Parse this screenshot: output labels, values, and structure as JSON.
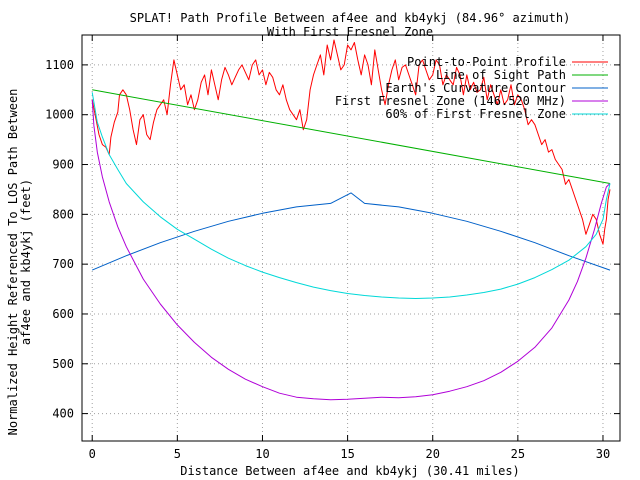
{
  "chart_data": {
    "type": "line",
    "title": "SPLAT! Path Profile Between af4ee and kb4ykj (84.96° azimuth)",
    "subtitle": "With First Fresnel Zone",
    "xlabel": "Distance Between af4ee and kb4ykj (30.41 miles)",
    "ylabel_lines": [
      "Normalized Height Referenced To LOS Path Between",
      "af4ee and kb4ykj (feet)"
    ],
    "xlim": [
      -0.6,
      31.0
    ],
    "ylim": [
      345,
      1160
    ],
    "xticks": [
      0,
      5,
      10,
      15,
      20,
      25,
      30
    ],
    "yticks": [
      400,
      500,
      600,
      700,
      800,
      900,
      1000,
      1100
    ],
    "grid": true,
    "legend_position": "top-right",
    "series": [
      {
        "name": "Point-to-Point Profile",
        "color": "#ff0000",
        "x": [
          0,
          0.2,
          0.4,
          0.6,
          0.8,
          1.0,
          1.1,
          1.3,
          1.5,
          1.6,
          1.8,
          2.0,
          2.2,
          2.4,
          2.6,
          2.8,
          3.0,
          3.2,
          3.4,
          3.6,
          3.8,
          4.0,
          4.2,
          4.4,
          4.6,
          4.8,
          5.0,
          5.2,
          5.4,
          5.6,
          5.8,
          6.0,
          6.2,
          6.4,
          6.6,
          6.8,
          7.0,
          7.2,
          7.4,
          7.6,
          7.8,
          8.0,
          8.2,
          8.4,
          8.6,
          8.8,
          9.0,
          9.2,
          9.4,
          9.6,
          9.8,
          10.0,
          10.2,
          10.4,
          10.6,
          10.8,
          11.0,
          11.2,
          11.4,
          11.6,
          11.8,
          12.0,
          12.2,
          12.4,
          12.6,
          12.8,
          13.0,
          13.2,
          13.4,
          13.6,
          13.8,
          14.0,
          14.2,
          14.4,
          14.6,
          14.8,
          15.0,
          15.2,
          15.4,
          15.6,
          15.8,
          16.0,
          16.2,
          16.4,
          16.6,
          16.8,
          17.0,
          17.2,
          17.4,
          17.6,
          17.8,
          18.0,
          18.2,
          18.4,
          18.6,
          18.8,
          19.0,
          19.2,
          19.4,
          19.6,
          19.8,
          20.0,
          20.2,
          20.4,
          20.6,
          20.8,
          21.0,
          21.2,
          21.4,
          21.6,
          21.8,
          22.0,
          22.2,
          22.4,
          22.6,
          22.8,
          23.0,
          23.2,
          23.4,
          23.6,
          23.8,
          24.0,
          24.2,
          24.4,
          24.6,
          24.8,
          25.0,
          25.2,
          25.4,
          25.6,
          25.8,
          26.0,
          26.2,
          26.4,
          26.6,
          26.8,
          27.0,
          27.2,
          27.4,
          27.6,
          27.8,
          28.0,
          28.2,
          28.4,
          28.6,
          28.8,
          29.0,
          29.2,
          29.4,
          29.6,
          29.8,
          30.0,
          30.1,
          30.2,
          30.3,
          30.41
        ],
        "y": [
          1030,
          995,
          960,
          940,
          935,
          920,
          955,
          985,
          1005,
          1040,
          1050,
          1040,
          1010,
          970,
          940,
          990,
          1000,
          960,
          950,
          985,
          1010,
          1020,
          1030,
          1000,
          1060,
          1110,
          1080,
          1050,
          1060,
          1020,
          1040,
          1010,
          1030,
          1065,
          1080,
          1040,
          1090,
          1060,
          1030,
          1070,
          1095,
          1080,
          1060,
          1075,
          1090,
          1100,
          1085,
          1070,
          1100,
          1110,
          1080,
          1090,
          1060,
          1085,
          1075,
          1050,
          1040,
          1060,
          1030,
          1010,
          1000,
          990,
          1010,
          970,
          990,
          1050,
          1080,
          1100,
          1120,
          1080,
          1140,
          1110,
          1150,
          1120,
          1090,
          1100,
          1140,
          1130,
          1145,
          1110,
          1080,
          1120,
          1100,
          1060,
          1130,
          1090,
          1050,
          1020,
          1060,
          1090,
          1110,
          1070,
          1095,
          1100,
          1080,
          1060,
          1040,
          1100,
          1110,
          1090,
          1070,
          1080,
          1110,
          1100,
          1060,
          1080,
          1070,
          1060,
          1095,
          1080,
          1040,
          1080,
          1050,
          1065,
          1045,
          1050,
          1075,
          1030,
          1060,
          1040,
          1020,
          1050,
          1020,
          1030,
          1060,
          1020,
          1040,
          1030,
          1010,
          980,
          990,
          980,
          960,
          940,
          950,
          925,
          930,
          910,
          900,
          890,
          860,
          870,
          850,
          830,
          810,
          790,
          760,
          780,
          800,
          790,
          760,
          740,
          770,
          790,
          830,
          850
        ]
      },
      {
        "name": "Line of Sight Path",
        "color": "#00b000",
        "x": [
          0,
          30.41
        ],
        "y": [
          1050,
          862
        ]
      },
      {
        "name": "Earth's Curvature Contour",
        "color": "#0060c8",
        "x": [
          0,
          2,
          4,
          6,
          8,
          10,
          12,
          14,
          15.2,
          16,
          18,
          20,
          22,
          24,
          26,
          28,
          30.41
        ],
        "y": [
          688,
          717,
          743,
          766,
          786,
          802,
          815,
          822,
          843,
          822,
          815,
          802,
          786,
          766,
          743,
          717,
          688
        ]
      },
      {
        "name": "First Fresnel Zone (146.520 MHz)",
        "color": "#b000d8",
        "x": [
          0,
          0.1,
          0.3,
          0.6,
          1.0,
          1.5,
          2.0,
          3.0,
          4.0,
          5.0,
          6.0,
          7.0,
          8.0,
          9.0,
          10.0,
          11.0,
          12.0,
          13.0,
          14.0,
          15.0,
          16.0,
          17.0,
          18.0,
          19.0,
          20.0,
          21.0,
          22.0,
          23.0,
          24.0,
          25.0,
          26.0,
          27.0,
          28.0,
          28.5,
          29.0,
          29.5,
          29.9,
          30.2,
          30.41
        ],
        "y": [
          1030,
          978,
          925,
          875,
          825,
          775,
          735,
          670,
          620,
          578,
          543,
          513,
          489,
          469,
          454,
          441,
          433,
          430,
          428,
          429,
          431,
          433,
          432,
          434,
          438,
          445,
          454,
          466,
          483,
          505,
          533,
          572,
          628,
          665,
          712,
          770,
          822,
          855,
          862
        ]
      },
      {
        "name": "60% of First Fresnel Zone",
        "color": "#00d8d8",
        "x": [
          0,
          0.3,
          0.6,
          1.0,
          1.5,
          2.0,
          3.0,
          4.0,
          5.0,
          6.0,
          7.0,
          8.0,
          9.0,
          10.0,
          11.0,
          12.0,
          13.0,
          14.0,
          15.0,
          16.0,
          17.0,
          18.0,
          19.0,
          20.0,
          21.0,
          22.0,
          23.0,
          24.0,
          25.0,
          26.0,
          27.0,
          28.0,
          29.0,
          29.6,
          30.0,
          30.2,
          30.41
        ],
        "y": [
          1045,
          985,
          955,
          920,
          890,
          862,
          825,
          795,
          770,
          750,
          730,
          712,
          697,
          684,
          673,
          663,
          654,
          647,
          641,
          637,
          634,
          632,
          631,
          632,
          634,
          638,
          643,
          650,
          660,
          673,
          689,
          708,
          735,
          760,
          790,
          830,
          862
        ]
      }
    ]
  }
}
